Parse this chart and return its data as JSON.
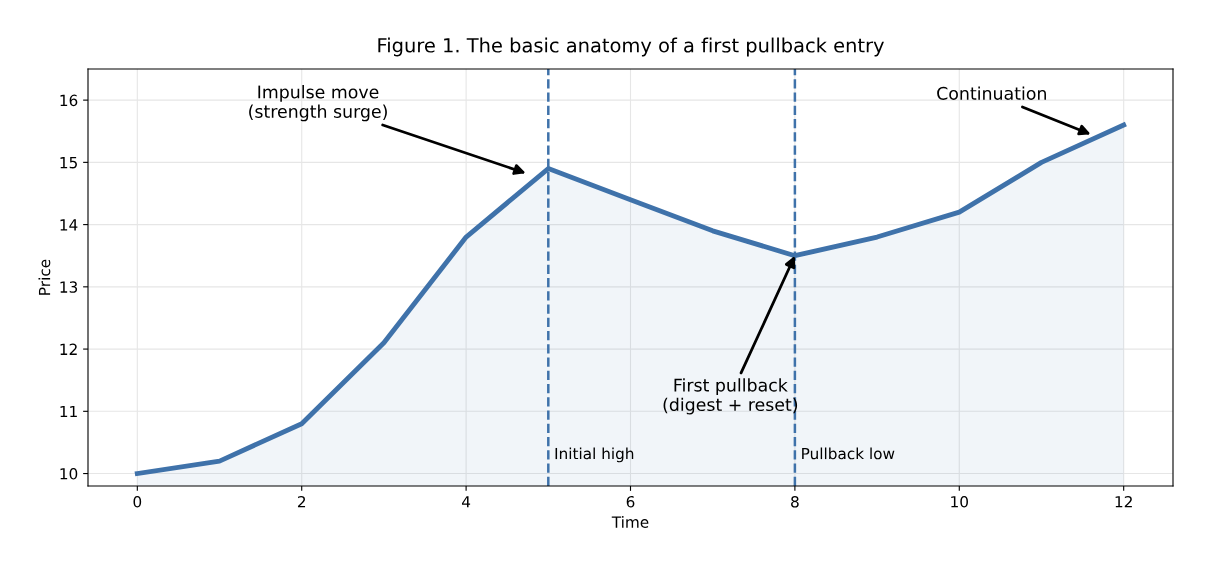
{
  "chart_data": {
    "type": "area",
    "title": "Figure 1. The basic anatomy of a first pullback entry",
    "xlabel": "Time",
    "ylabel": "Price",
    "x": [
      0,
      1,
      2,
      3,
      4,
      5,
      6,
      7,
      8,
      9,
      10,
      11,
      12
    ],
    "series": [
      {
        "color": "#3f72aa",
        "values": [
          10.0,
          10.2,
          10.8,
          12.1,
          13.8,
          14.9,
          14.4,
          13.9,
          13.5,
          13.8,
          14.2,
          15.0,
          15.6
        ]
      }
    ],
    "xlim": [
      -0.6,
      12.6
    ],
    "xticks": [
      0,
      2,
      4,
      6,
      8,
      10,
      12
    ],
    "ylim": [
      9.8,
      16.5
    ],
    "yticks": [
      10,
      11,
      12,
      13,
      14,
      15,
      16
    ],
    "grid": true,
    "line_style": "solid",
    "marker": "none",
    "ref_lines": [
      {
        "axis": "x",
        "value": 5,
        "label": "Initial high",
        "color": "#3f72aa",
        "line_style": "dashed"
      },
      {
        "axis": "x",
        "value": 8,
        "label": "Pullback low",
        "color": "#3f72aa",
        "line_style": "dashed"
      }
    ],
    "annotations": [
      "Impulse move\n(strength surge)",
      {
        "text": "First pullback\n(digest + reset)",
        "x": 8,
        "y": 13.5
      },
      {
        "text": "Continuation",
        "x": 11.6,
        "y": 15.45
      }
    ]
  }
}
